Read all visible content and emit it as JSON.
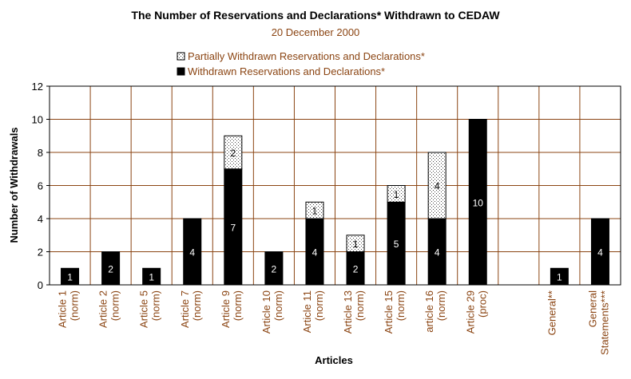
{
  "chart_data": {
    "type": "bar",
    "stacked": true,
    "title": "The Number of Reservations and Declarations* Withdrawn to CEDAW",
    "subtitle": "20 December 2000",
    "xlabel": "Articles",
    "ylabel": "Number of Withdrawals",
    "ylim": [
      0,
      12
    ],
    "yticks": [
      0,
      2,
      4,
      6,
      8,
      10,
      12
    ],
    "grid": true,
    "legend_position": "top-center",
    "categories": [
      [
        "Article 1",
        "(norm)"
      ],
      [
        "Article 2",
        "(norm)"
      ],
      [
        "Article 5",
        "(norm)"
      ],
      [
        "Article 7",
        "(norm)"
      ],
      [
        "Article 9",
        "(norm)"
      ],
      [
        "Article 10",
        "(norm)"
      ],
      [
        "Article 11",
        "(norm)"
      ],
      [
        "Article 13",
        "(norm)"
      ],
      [
        "Article 15",
        "(norm)"
      ],
      [
        "article 16",
        "(norm)"
      ],
      [
        "Article 29",
        "(proc)"
      ],
      [],
      [
        "General**"
      ],
      [
        "General",
        "Statements***"
      ]
    ],
    "series": [
      {
        "name": "Withdrawn Reservations and Declarations*",
        "color": "#000000",
        "values": [
          1,
          2,
          1,
          4,
          7,
          2,
          4,
          2,
          5,
          4,
          10,
          null,
          1,
          4
        ],
        "labels": [
          "1",
          "2",
          "1",
          "4",
          "7",
          "2",
          "4",
          "2",
          "5",
          "4",
          "10",
          "",
          "1",
          "4"
        ]
      },
      {
        "name": "Partially Withdrawn Reservations and Declarations*",
        "color": "#f0e6d6",
        "values": [
          null,
          null,
          null,
          null,
          2,
          null,
          1,
          1,
          1,
          4,
          null,
          null,
          null,
          null
        ],
        "labels": [
          "",
          "",
          "",
          "",
          "2",
          "",
          "1",
          "1",
          "1",
          "4",
          "",
          "",
          "",
          ""
        ]
      }
    ]
  },
  "colors": {
    "grid": "#8B4513",
    "plot_border": "#000000",
    "text_brown": "#8B4513"
  }
}
